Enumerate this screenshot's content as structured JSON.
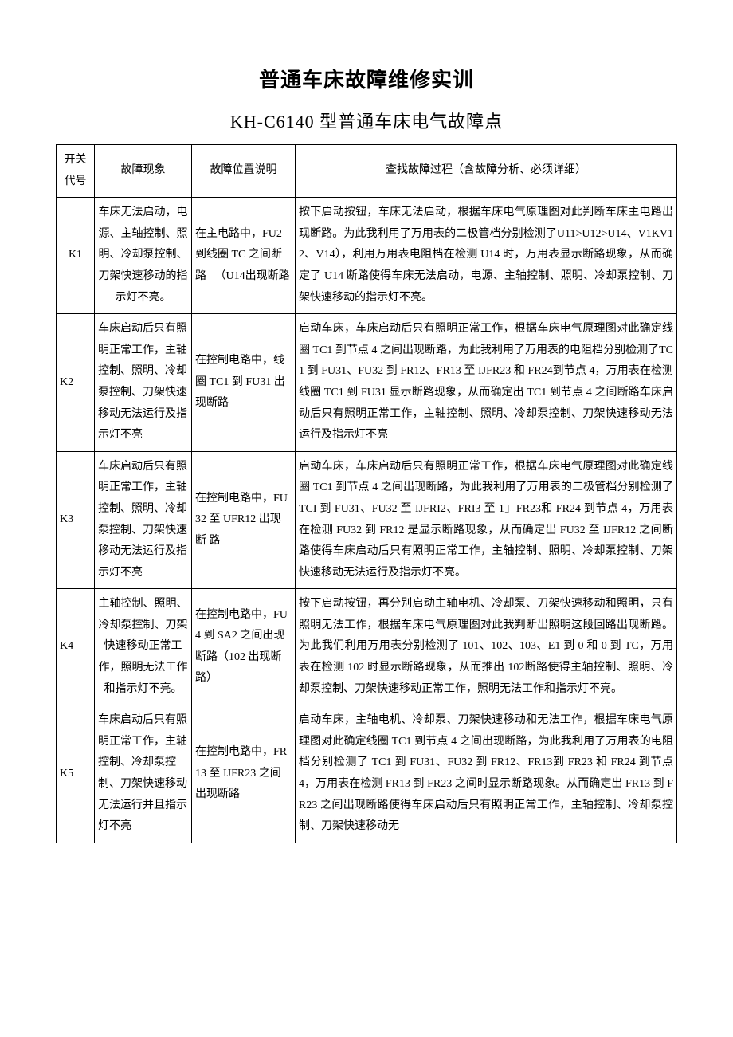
{
  "title": "普通车床故障维修实训",
  "subtitle": "KH-C6140 型普通车床电气故障点",
  "headers": {
    "code": "开关代号",
    "symptom": "故障现象",
    "position": "故障位置说明",
    "process": "查找故障过程（含故障分析、必须详细）"
  },
  "rows": [
    {
      "code": "K1",
      "symptom": "车床无法启动，电源、主轴控制、照明、冷却泵控制、刀架快速移动的指示灯不亮。",
      "position": "在主电路中，FU2到线圈 TC 之间断路\n　（U14出现断路",
      "process": "按下启动按钮，车床无法启动，根据车床电气原理图对此判断车床主电路出现断路。为此我利用了万用表的二极管档分别检测了U11>U12>U14、V1KV12、V14），利用万用表电阻档在检测 U14 时，万用表显示断路现象，从而确定了 U14 断路使得车床无法启动，电源、主轴控制、照明、冷却泵控制、刀架快速移动的指示灯不亮。"
    },
    {
      "code": "K2",
      "symptom": "车床启动后只有照明正常工作，主轴控制、照明、冷却泵控制、刀架快速移动无法运行及指示灯不亮",
      "position": "在控制电路中，线圈 TC1 到 FU31 出现断路",
      "process": "启动车床，车床启动后只有照明正常工作，根据车床电气原理图对此确定线圈 TC1 到节点 4 之间出现断路，为此我利用了万用表的电阻档分别检测了TC1 到 FU31、FU32 到 FR12、FR13 至 IJFR23 和 FR24到节点 4，万用表在检测线圈 TC1 到 FU31 显示断路现象，从而确定出 TC1 到节点 4 之间断路车床启动后只有照明正常工作，主轴控制、照明、冷却泵控制、刀架快速移动无法运行及指示灯不亮"
    },
    {
      "code": "K3",
      "symptom": "车床启动后只有照明正常工作，主轴控制、照明、冷却泵控制、刀架快速移动无法运行及指示灯不亮",
      "position": "在控制电路中，FU32 至 UFR12 出现断\n路",
      "process": "启动车床，车床启动后只有照明正常工作，根据车床电气原理图对此确定线圈 TC1 到节点 4 之间出现断路，为此我利用了万用表的二极管档分别检测了TCI 到 FU31、FU32 至 IJFRI2、FRI3 至 1」FR23和 FR24 到节点 4，万用表在检测 FU32 到 FR12 是显示断路现象，从而确定出 FU32 至 IJFR12 之间断路使得车床启动后只有照明正常工作，主轴控制、照明、冷却泵控制、刀架快速移动无法运行及指示灯不亮。"
    },
    {
      "code": "K4",
      "symptom": "主轴控制、照明、冷却泵控制、刀架快速移动正常工作，照明无法工作和指示灯不亮。",
      "position": "在控制电路中，FU4 到 SA2 之间出现断路（102 出现断路）",
      "process": "按下启动按钮，再分别启动主轴电机、冷却泵、刀架快速移动和照明，只有照明无法工作，根据车床电气原理图对此我判断出照明这段回路出现断路。为此我们利用万用表分别检测了 101、102、103、E1 到 0 和 0 到 TC，万用表在检测 102 时显示断路现象，从而推出 102断路使得主轴控制、照明、冷却泵控制、刀架快速移动正常工作，照明无法工作和指示灯不亮。"
    },
    {
      "code": "K5",
      "symptom": "车床启动后只有照明正常工作，主轴控制、冷却泵控制、刀架快速移动无法运行并且指示灯不亮",
      "position": "在控制电路中，FR13 至 IJFR23 之间出现断路",
      "process": "启动车床，主轴电机、冷却泵、刀架快速移动和无法工作，根据车床电气原理图对此确定线圈 TC1 到节点 4 之间出现断路，为此我利用了万用表的电阻档分别检测了 TC1 到 FU31、FU32 到 FR12、FR13到 FR23 和 FR24 到节点 4，万用表在检测 FR13 到 FR23 之间时显示断路现象。从而确定出 FR13 到 FR23 之间出现断路使得车床启动后只有照明正常工作，主轴控制、冷却泵控制、刀架快速移动无"
    }
  ]
}
